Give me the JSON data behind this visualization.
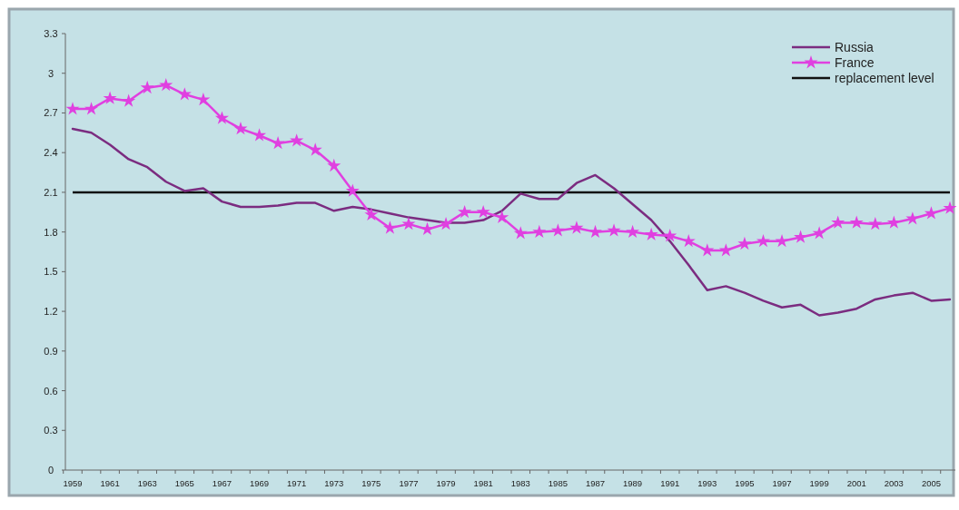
{
  "chart_data": {
    "type": "line",
    "categories": [
      "1959",
      null,
      "1961",
      null,
      "1963",
      null,
      "1965",
      null,
      "1967",
      null,
      "1969",
      null,
      "1971",
      null,
      "1973",
      null,
      "1975",
      null,
      "1977",
      null,
      "1979",
      null,
      "1981",
      null,
      "1983",
      null,
      "1985",
      null,
      "1987",
      null,
      "1989",
      null,
      "1991",
      null,
      "1993",
      null,
      "1995",
      null,
      "1997",
      null,
      "1999",
      null,
      "2001",
      null,
      "2003",
      null,
      "2005",
      null
    ],
    "series": [
      {
        "name": "Russia",
        "color": "#7b2c80",
        "marker": "none",
        "values": [
          2.58,
          2.55,
          2.46,
          2.35,
          2.29,
          2.18,
          2.11,
          2.13,
          2.03,
          1.99,
          1.99,
          2.0,
          2.02,
          2.02,
          1.96,
          1.99,
          1.97,
          1.94,
          1.91,
          1.89,
          1.87,
          1.87,
          1.89,
          1.96,
          2.09,
          2.05,
          2.05,
          2.17,
          2.23,
          2.13,
          2.01,
          1.89,
          1.73,
          1.55,
          1.36,
          1.39,
          1.34,
          1.28,
          1.23,
          1.25,
          1.17,
          1.19,
          1.22,
          1.29,
          1.32,
          1.34,
          1.28,
          1.29
        ]
      },
      {
        "name": "France",
        "color": "#e040e0",
        "marker": "star",
        "values": [
          2.73,
          2.73,
          2.81,
          2.79,
          2.89,
          2.91,
          2.84,
          2.8,
          2.66,
          2.58,
          2.53,
          2.47,
          2.49,
          2.42,
          2.3,
          2.11,
          1.93,
          1.83,
          1.86,
          1.82,
          1.86,
          1.95,
          1.95,
          1.91,
          1.79,
          1.8,
          1.81,
          1.83,
          1.8,
          1.81,
          1.8,
          1.78,
          1.77,
          1.73,
          1.66,
          1.66,
          1.71,
          1.73,
          1.73,
          1.76,
          1.79,
          1.87,
          1.87,
          1.86,
          1.87,
          1.9,
          1.94,
          1.98
        ]
      }
    ],
    "ref_lines": [
      {
        "axis": "y",
        "value": 2.1,
        "label": "replacement level",
        "color": "#111111"
      }
    ],
    "ylim": [
      0,
      3.3
    ],
    "yticks": [
      0,
      0.3,
      0.6,
      0.9,
      1.2,
      1.5,
      1.8,
      2.1,
      2.4,
      2.7,
      3,
      3.3
    ],
    "grid": false,
    "legend": "top right",
    "line_style": "solid"
  }
}
